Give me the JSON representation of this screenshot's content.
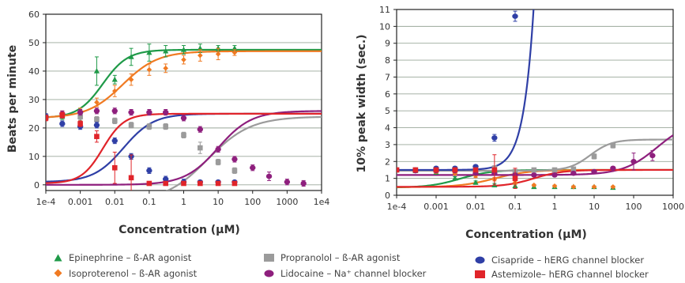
{
  "colors": {
    "epinephrine": "#1f9a48",
    "isoproterenol": "#f07a22",
    "propranolol": "#9b9b9b",
    "lidocaine": "#8e1f7d",
    "cisapride": "#2f3fa6",
    "astemizole": "#e0242a",
    "grid": "#9aa89a",
    "axis": "#222222"
  },
  "legend": [
    {
      "key": "epinephrine",
      "marker": "triangle",
      "label": "Epinephrine – ß-AR agonist"
    },
    {
      "key": "isoproterenol",
      "marker": "diamond",
      "label": "Isoproterenol – ß-AR agonist"
    },
    {
      "key": "propranolol",
      "marker": "square",
      "label": "Propranolol – ß-AR agonist"
    },
    {
      "key": "lidocaine",
      "marker": "circle",
      "label": "Lidocaine – Na⁺ channel blocker"
    },
    {
      "key": "cisapride",
      "marker": "circle",
      "label": "Cisapride – hERG channel blocker"
    },
    {
      "key": "astemizole",
      "marker": "square",
      "label": "Astemizole– hERG channel blocker"
    }
  ],
  "chart_data": [
    {
      "type": "scatter",
      "xlabel": "Concentration (µM)",
      "ylabel": "Beats per minute",
      "xscale": "log",
      "xlim": [
        0.0001,
        10000
      ],
      "ylim": [
        -2,
        60
      ],
      "xticks": [
        0.0001,
        0.001,
        0.01,
        0.1,
        1,
        10,
        100,
        1000,
        10000
      ],
      "xtick_labels": [
        "1e-4",
        "0.001",
        "0.01",
        "0.1",
        "1",
        "10",
        "100",
        "1000",
        "1e4"
      ],
      "yticks": [
        0,
        10,
        20,
        30,
        40,
        50,
        60
      ],
      "ytick_labels": [
        "0",
        "10",
        "20",
        "30",
        "40",
        "50",
        "60"
      ],
      "grid": "horizontal",
      "series": [
        {
          "key": "epinephrine",
          "marker": "triangle",
          "x": [
            0.0001,
            0.0003,
            0.001,
            0.003,
            0.01,
            0.03,
            0.1,
            0.3,
            1,
            3,
            10,
            30
          ],
          "y": [
            24,
            24,
            24,
            40,
            37,
            45,
            46.5,
            47,
            47.5,
            48,
            48,
            48
          ],
          "err": [
            1,
            1,
            1.5,
            5,
            1.5,
            3,
            3,
            2,
            1.5,
            1.5,
            1,
            1
          ],
          "curve": {
            "bottom": 23.5,
            "top": 47.5,
            "ec50": 0.0045,
            "hill": 1.2
          }
        },
        {
          "key": "isoproterenol",
          "marker": "diamond",
          "x": [
            0.0001,
            0.0003,
            0.001,
            0.003,
            0.01,
            0.03,
            0.1,
            0.3,
            1,
            3,
            10,
            30
          ],
          "y": [
            24,
            25,
            26,
            29,
            33,
            37,
            40.5,
            41,
            44,
            45.5,
            46,
            46.5
          ],
          "err": [
            1,
            1,
            1,
            1.5,
            2,
            2,
            2,
            1.5,
            1.5,
            2,
            2,
            1
          ],
          "curve": {
            "bottom": 23.5,
            "top": 47,
            "ec50": 0.017,
            "hill": 0.85
          }
        },
        {
          "key": "propranolol",
          "marker": "square",
          "x": [
            0.0001,
            0.0003,
            0.001,
            0.003,
            0.01,
            0.03,
            0.1,
            0.3,
            1,
            3,
            10,
            30
          ],
          "y": [
            24,
            24.5,
            24,
            23,
            22.5,
            21,
            20.5,
            20.5,
            17.5,
            13,
            8,
            5
          ],
          "err": [
            1,
            1,
            1,
            1,
            1,
            1,
            1,
            1,
            1,
            2,
            1,
            1
          ],
          "curve": {
            "bottom": -6,
            "top": 24,
            "ec50": 5,
            "hill": 0.7
          }
        },
        {
          "key": "lidocaine",
          "marker": "circle",
          "x": [
            0.0001,
            0.0003,
            0.001,
            0.003,
            0.01,
            0.03,
            0.1,
            0.3,
            1,
            3,
            10,
            30,
            100,
            300,
            1000,
            3000
          ],
          "y": [
            24,
            25,
            25.5,
            26,
            26,
            25.5,
            25.5,
            25.5,
            23.5,
            19.5,
            12.5,
            9,
            6,
            3,
            1,
            0.5
          ],
          "err": [
            1,
            1,
            1,
            1,
            1,
            1,
            1,
            1,
            1,
            1,
            1,
            1,
            1,
            1.5,
            1,
            1
          ],
          "curve": {
            "bottom": 0,
            "top": 26,
            "ec50": 10,
            "hill": 0.9
          }
        },
        {
          "key": "cisapride",
          "marker": "circle",
          "x": [
            0.0001,
            0.0003,
            0.001,
            0.003,
            0.01,
            0.03,
            0.1,
            0.3,
            1,
            3,
            10,
            30
          ],
          "y": [
            24,
            21.5,
            20.5,
            21,
            15.5,
            10,
            5,
            2,
            1,
            1,
            1,
            1
          ],
          "err": [
            1,
            1,
            1,
            1,
            1,
            1,
            1,
            1,
            1,
            0.5,
            0.5,
            0.5
          ],
          "curve": {
            "bottom": 1,
            "top": 25,
            "ec50": 0.018,
            "hill": 1.0
          }
        },
        {
          "key": "astemizole",
          "marker": "square",
          "x": [
            0.0001,
            0.0003,
            0.001,
            0.003,
            0.01,
            0.03,
            0.1,
            0.3,
            1,
            3,
            10,
            30
          ],
          "y": [
            23.5,
            24.5,
            21.5,
            17,
            6,
            2.5,
            0.5,
            0.5,
            0.5,
            0.5,
            0.5,
            0.5
          ],
          "err": [
            1,
            1,
            1,
            2,
            5.5,
            8,
            0.5,
            0.5,
            0.5,
            0.5,
            0.5,
            0.5
          ],
          "curve": {
            "bottom": 0.5,
            "top": 25,
            "ec50": 0.0045,
            "hill": 1.4
          }
        }
      ]
    },
    {
      "type": "scatter",
      "xlabel": "Concentration (µM)",
      "ylabel": "10% peak width (sec.)",
      "xscale": "log",
      "xlim": [
        0.0001,
        1000
      ],
      "ylim": [
        0,
        11
      ],
      "xticks": [
        0.0001,
        0.001,
        0.01,
        0.1,
        1,
        10,
        100,
        1000
      ],
      "xtick_labels": [
        "1e-4",
        "0.001",
        "0.01",
        "0.1",
        "1",
        "10",
        "100",
        "1000"
      ],
      "yticks": [
        0,
        1,
        2,
        3,
        4,
        5,
        6,
        7,
        8,
        9,
        10,
        11
      ],
      "ytick_labels": [
        "0",
        "1",
        "2",
        "3",
        "4",
        "5",
        "6",
        "7",
        "8",
        "9",
        "10",
        "11"
      ],
      "grid": "horizontal",
      "series": [
        {
          "key": "epinephrine",
          "marker": "triangle",
          "x": [
            0.0001,
            0.0003,
            0.001,
            0.003,
            0.01,
            0.03,
            0.1,
            0.3,
            1,
            3,
            10,
            30
          ],
          "y": [
            1.5,
            1.45,
            1.35,
            1.0,
            0.75,
            0.6,
            0.55,
            0.5,
            0.5,
            0.5,
            0.5,
            0.45
          ],
          "err": [
            0.1,
            0.1,
            0.1,
            0.1,
            0.1,
            0.1,
            0.1,
            0.05,
            0.05,
            0.05,
            0.05,
            0.05
          ],
          "curve": {
            "bottom": 0.45,
            "top": 1.5,
            "ec50": 0.004,
            "hill": 1.1
          }
        },
        {
          "key": "isoproterenol",
          "marker": "diamond",
          "x": [
            0.0001,
            0.0003,
            0.001,
            0.003,
            0.01,
            0.03,
            0.1,
            0.3,
            1,
            3,
            10,
            30
          ],
          "y": [
            1.5,
            1.45,
            1.4,
            1.3,
            1.15,
            0.95,
            0.75,
            0.6,
            0.55,
            0.5,
            0.5,
            0.5
          ],
          "err": [
            0.1,
            0.1,
            0.1,
            0.1,
            0.1,
            0.1,
            0.1,
            0.05,
            0.05,
            0.05,
            0.05,
            0.05
          ],
          "curve": {
            "bottom": 0.48,
            "top": 1.5,
            "ec50": 0.03,
            "hill": 1.0
          }
        },
        {
          "key": "propranolol",
          "marker": "square",
          "x": [
            0.0001,
            0.0003,
            0.001,
            0.003,
            0.01,
            0.03,
            0.1,
            0.3,
            1,
            3,
            10,
            30
          ],
          "y": [
            1.5,
            1.5,
            1.5,
            1.5,
            1.5,
            1.6,
            1.4,
            1.5,
            1.5,
            1.55,
            2.3,
            2.95
          ],
          "err": [
            0.1,
            0.1,
            0.1,
            0.1,
            0.1,
            0.15,
            0.1,
            0.1,
            0.1,
            0.1,
            0.15,
            0.15
          ],
          "curve": {
            "bottom": 1.45,
            "top": 3.3,
            "ec50": 8,
            "hill": 1.6
          }
        },
        {
          "key": "lidocaine",
          "marker": "circle",
          "x": [
            0.0001,
            0.0003,
            0.001,
            0.003,
            0.01,
            0.03,
            0.1,
            0.3,
            1,
            3,
            10,
            30,
            100,
            300
          ],
          "y": [
            1.5,
            1.45,
            1.45,
            1.45,
            1.3,
            1.3,
            1.2,
            1.2,
            1.2,
            1.3,
            1.4,
            1.6,
            2.0,
            2.35
          ],
          "err": [
            0.1,
            0.1,
            0.1,
            0.1,
            0.1,
            0.1,
            0.1,
            0.1,
            0.1,
            0.1,
            0.1,
            0.1,
            0.5,
            0.3
          ],
          "curve": {
            "bottom": 1.2,
            "top": 4.5,
            "ec50": 400,
            "hill": 1.0
          }
        },
        {
          "key": "cisapride",
          "marker": "circle",
          "x": [
            0.0003,
            0.001,
            0.003,
            0.01,
            0.03,
            0.1
          ],
          "y": [
            1.5,
            1.6,
            1.6,
            1.7,
            3.4,
            10.6
          ],
          "err": [
            0.1,
            0.1,
            0.1,
            0.1,
            0.2,
            0.3
          ],
          "curve": {
            "bottom": 1.5,
            "top": 1000,
            "ec50": 4.5,
            "hill": 1.7
          }
        },
        {
          "key": "astemizole",
          "marker": "square",
          "x": [
            0.0001,
            0.0003,
            0.001,
            0.003,
            0.01,
            0.03,
            0.1
          ],
          "y": [
            1.5,
            1.5,
            1.5,
            1.5,
            1.5,
            1.5,
            1.0
          ],
          "err": [
            0.1,
            0.1,
            0.1,
            0.1,
            0.1,
            0.9,
            0.6
          ],
          "curve": {
            "bottom": 0.5,
            "top": 1.5,
            "ec50": 0.3,
            "hill": 1.2
          }
        }
      ]
    }
  ]
}
